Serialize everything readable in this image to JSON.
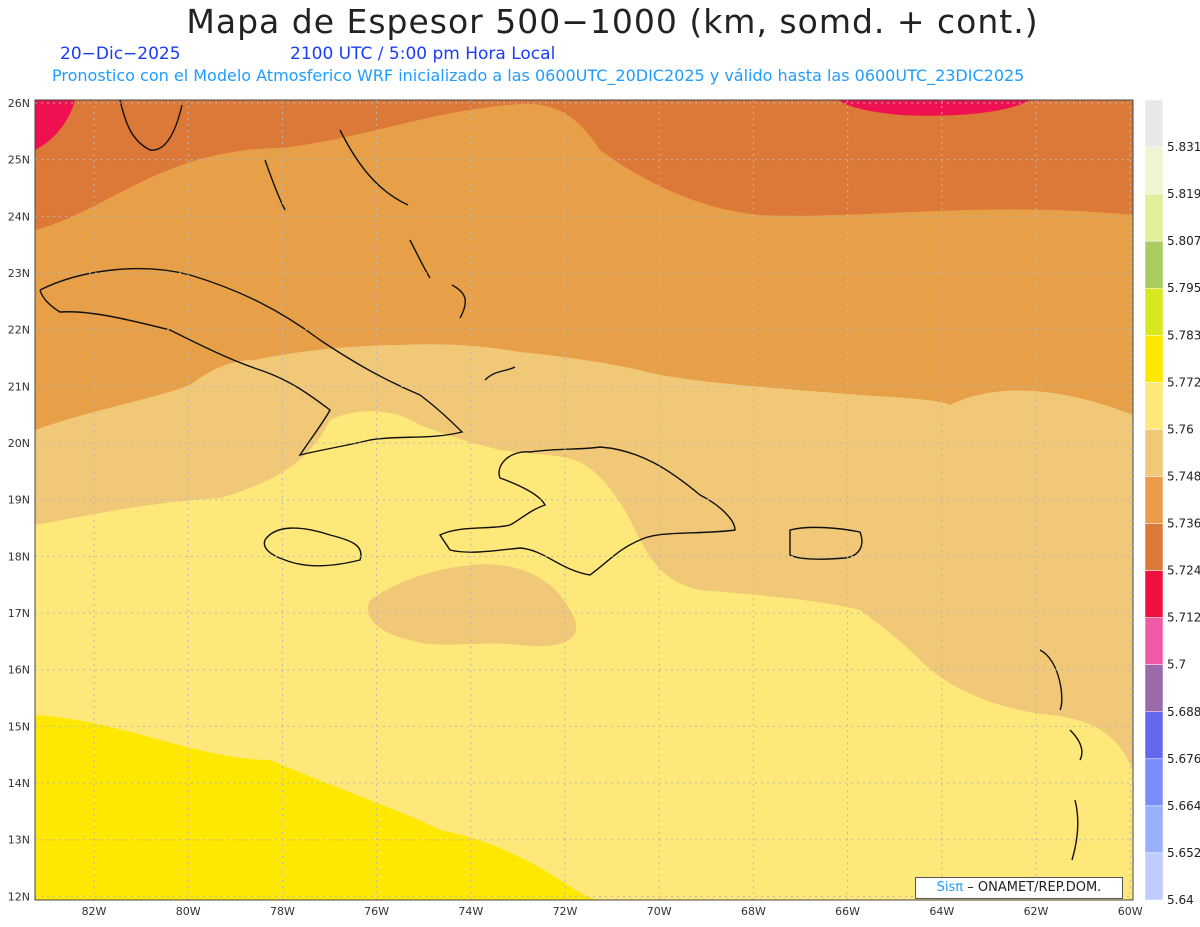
{
  "header": {
    "title": "Mapa de Espesor 500−1000 (km, somd. + cont.)",
    "date": "20−Dic−2025",
    "time": "2100 UTC / 5:00 pm Hora Local",
    "model_note": "Pronostico con el Modelo Atmosferico WRF inicializado a las 0600UTC_20DIC2025 y válido hasta las  0600UTC_23DIC2025"
  },
  "axes": {
    "lat_labels": [
      "26N",
      "25N",
      "24N",
      "23N",
      "22N",
      "21N",
      "20N",
      "19N",
      "18N",
      "17N",
      "16N",
      "15N",
      "14N",
      "13N",
      "12N"
    ],
    "lon_labels": [
      "82W",
      "80W",
      "78W",
      "76W",
      "74W",
      "72W",
      "70W",
      "68W",
      "66W",
      "64W",
      "62W",
      "60W"
    ]
  },
  "colorbar": {
    "levels": [
      "5.831",
      "5.819",
      "5.807",
      "5.795",
      "5.783",
      "5.772",
      "5.76",
      "5.748",
      "5.736",
      "5.724",
      "5.712",
      "5.7",
      "5.688",
      "5.676",
      "5.664",
      "5.652",
      "5.64"
    ],
    "colors": [
      "#e8e8e8",
      "#f0f4d0",
      "#e0f09a",
      "#a8cc60",
      "#d8e820",
      "#ffe800",
      "#ffe87a",
      "#f0c878",
      "#ec9c48",
      "#dc7838",
      "#ee1040",
      "#ee5aa6",
      "#9a6aaa",
      "#6666ee",
      "#7a8cf8",
      "#9ab0fc",
      "#c0ccff"
    ]
  },
  "map": {
    "fill_colors": {
      "band_5712": "#dc7838",
      "band_5724": "#e8a048",
      "band_5736": "#f0c878",
      "band_5748": "#ffe87a",
      "band_5760": "#ffe800",
      "peak": "#ee1050"
    }
  },
  "credit": {
    "brand": "Sisπ",
    "org": "– ONAMET/REP.DOM."
  }
}
